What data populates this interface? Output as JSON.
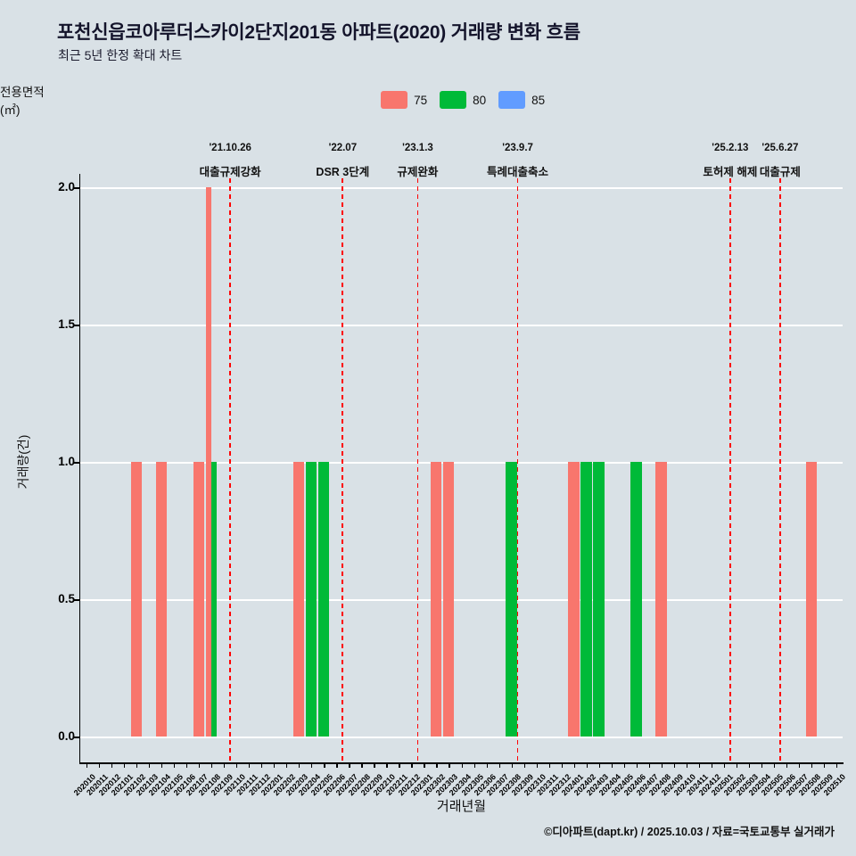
{
  "title": "포천신읍코아루더스카이2단지201동 아파트(2020) 거래량 변화 흐름",
  "subtitle": "최근 5년 한정 확대 차트",
  "legend": {
    "label": "전용면적(㎡)",
    "items": [
      {
        "name": "75",
        "color": "#f8766d"
      },
      {
        "name": "80",
        "color": "#00ba38"
      },
      {
        "name": "85",
        "color": "#619cff"
      }
    ]
  },
  "footer": "©디아파트(dapt.kr) / 2025.10.03 / 자료=국토교통부 실거래가",
  "colors": {
    "background": "#d9e1e6",
    "gridline": "#ffffff",
    "event_line": "#ff0000"
  },
  "chart_data": {
    "type": "bar",
    "title": "포천신읍코아루더스카이2단지201동 아파트(2020) 거래량 변화 흐름",
    "subtitle": "최근 5년 한정 확대 차트",
    "xlabel": "거래년월",
    "ylabel": "거래량(건)",
    "ylim": [
      0,
      2.0
    ],
    "yticks": [
      0.0,
      0.5,
      1.0,
      1.5,
      2.0
    ],
    "grid": "white horizontal major lines on",
    "legend_position": "top-center",
    "months": [
      "202010",
      "202011",
      "202012",
      "202101",
      "202102",
      "202103",
      "202104",
      "202105",
      "202106",
      "202107",
      "202108",
      "202109",
      "202110",
      "202111",
      "202112",
      "202201",
      "202202",
      "202203",
      "202204",
      "202205",
      "202206",
      "202207",
      "202208",
      "202209",
      "202210",
      "202211",
      "202212",
      "202301",
      "202302",
      "202303",
      "202304",
      "202305",
      "202306",
      "202307",
      "202308",
      "202309",
      "202310",
      "202311",
      "202312",
      "202401",
      "202402",
      "202403",
      "202404",
      "202405",
      "202406",
      "202407",
      "202408",
      "202409",
      "202410",
      "202411",
      "202412",
      "202501",
      "202502",
      "202503",
      "202504",
      "202505",
      "202506",
      "202507",
      "202508",
      "202509",
      "202510"
    ],
    "series": [
      {
        "name": "75",
        "color": "#f8766d",
        "data": {
          "202102": 1,
          "202104": 1,
          "202107": 1,
          "202108": 2,
          "202203": 1,
          "202302": 1,
          "202303": 1,
          "202401": 1,
          "202408": 1,
          "202508": 1
        }
      },
      {
        "name": "80",
        "color": "#00ba38",
        "data": {
          "202108": 1,
          "202204": 1,
          "202205": 1,
          "202308": 1,
          "202402": 1,
          "202403": 1,
          "202406": 1
        }
      },
      {
        "name": "85",
        "color": "#619cff",
        "data": {}
      }
    ],
    "events": [
      {
        "date": "'21.10.26",
        "label": "대출규제강화",
        "month": "202110"
      },
      {
        "date": "'22.07",
        "label": "DSR 3단계",
        "month": "202207"
      },
      {
        "date": "'23.1.3",
        "label": "규제완화",
        "month": "202301"
      },
      {
        "date": "'23.9.7",
        "label": "특례대출축소",
        "month": "202309"
      },
      {
        "date": "'25.2.13",
        "label": "토허제 해제",
        "month": "202502"
      },
      {
        "date": "'25.6.27",
        "label": "대출규제",
        "month": "202506"
      }
    ]
  }
}
